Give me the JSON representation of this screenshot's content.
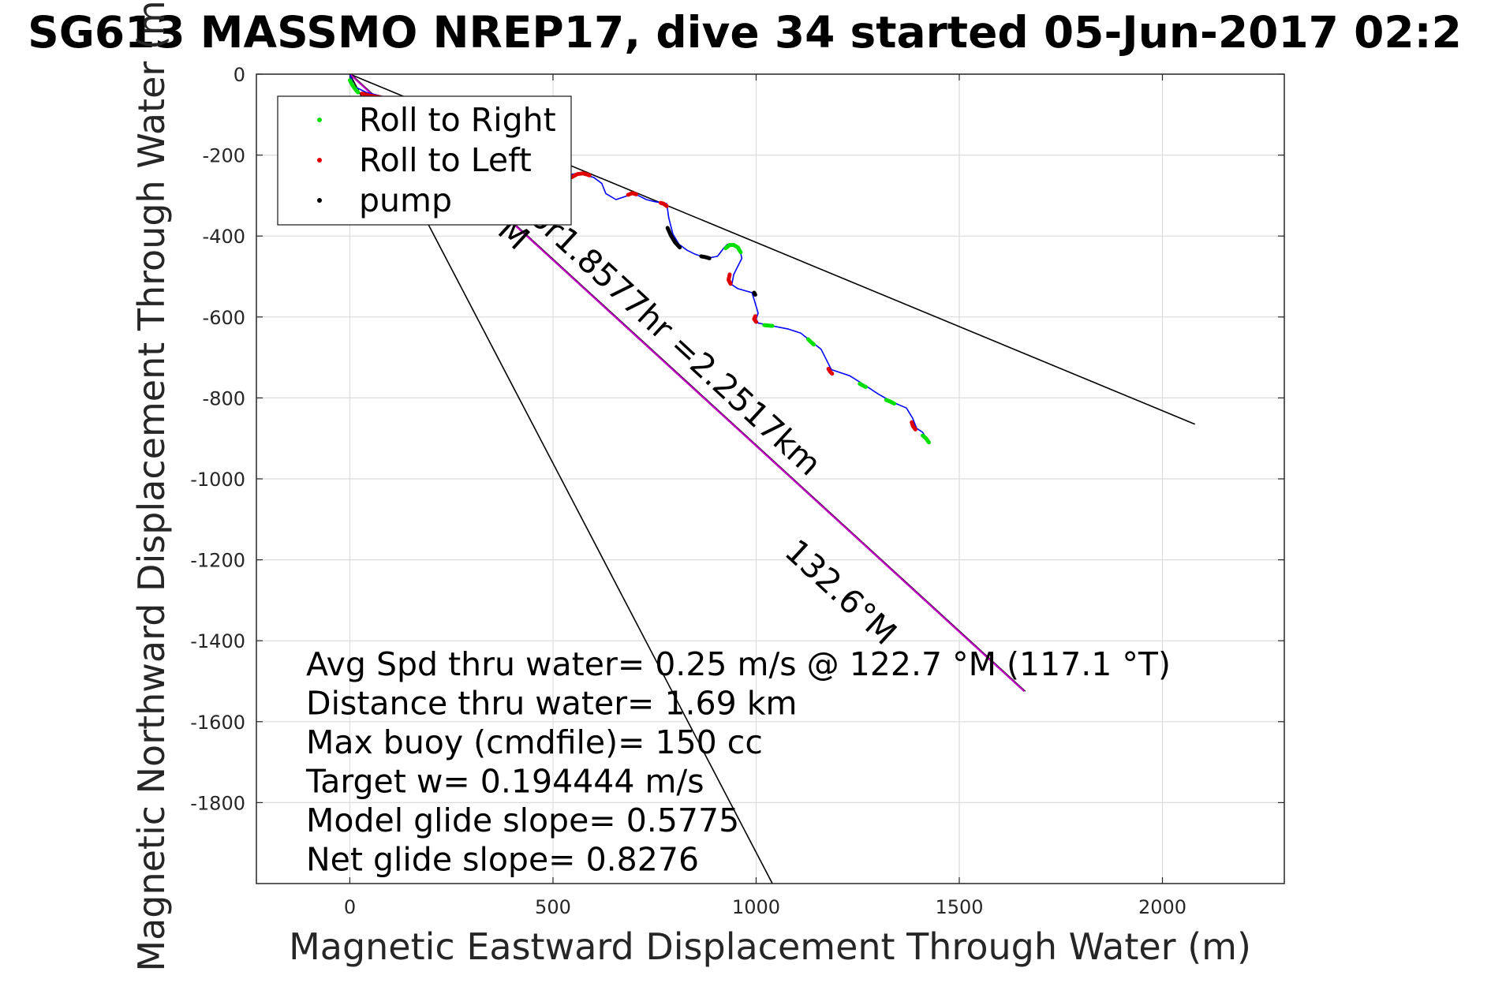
{
  "chart_data": {
    "type": "line",
    "title": "SG613 MASSMO NREP17, dive 34 started 05-Jun-2017 02:2",
    "xlabel": "Magnetic Eastward Displacement Through Water (m)",
    "ylabel": "Magnetic Northward Displacement Through Water (m)",
    "xlim": [
      -230,
      2300
    ],
    "ylim": [
      -2000,
      0
    ],
    "xticks": [
      0,
      500,
      1000,
      1500,
      2000
    ],
    "yticks": [
      0,
      -200,
      -400,
      -600,
      -800,
      -1000,
      -1200,
      -1400,
      -1600,
      -1800
    ],
    "grid": true,
    "legend_position": "top-left",
    "legend": [
      {
        "label": "Roll to Right",
        "color": "#00e000"
      },
      {
        "label": "Roll to Left",
        "color": "#e00000"
      },
      {
        "label": "pump",
        "color": "#000000"
      }
    ],
    "colors": {
      "track": "#0000ff",
      "roll_right": "#00e000",
      "roll_left": "#e00000",
      "pump": "#000000",
      "current": "#c000c0",
      "bounds": "#000000"
    },
    "series": [
      {
        "name": "track",
        "x": [
          0,
          10,
          40,
          80,
          150,
          250,
          330,
          400,
          460,
          510,
          560,
          600,
          620,
          630,
          655,
          700,
          730,
          750,
          780,
          785,
          795,
          810,
          830,
          850,
          880,
          905,
          920,
          930,
          945,
          960,
          965,
          945,
          940,
          955,
          990,
          1005,
          1000,
          1005,
          1030,
          1080,
          1110,
          1135,
          1160,
          1185,
          1230,
          1270,
          1300,
          1335,
          1370,
          1385,
          1395,
          1410,
          1425
        ],
        "y": [
          0,
          -30,
          -45,
          -55,
          -80,
          -120,
          -160,
          -200,
          -230,
          -255,
          -245,
          -255,
          -270,
          -295,
          -310,
          -295,
          -310,
          -315,
          -320,
          -355,
          -395,
          -420,
          -435,
          -445,
          -455,
          -450,
          -430,
          -420,
          -425,
          -435,
          -455,
          -495,
          -520,
          -530,
          -540,
          -590,
          -605,
          -615,
          -620,
          -630,
          -640,
          -660,
          -680,
          -730,
          -745,
          -770,
          -790,
          -810,
          -825,
          -850,
          -875,
          -885,
          -910
        ]
      },
      {
        "name": "current",
        "x": [
          0,
          1660
        ],
        "y": [
          0,
          -1525
        ]
      },
      {
        "name": "bound-1",
        "x": [
          0,
          2080
        ],
        "y": [
          0,
          -865
        ]
      },
      {
        "name": "bound-2",
        "x": [
          0,
          1040
        ],
        "y": [
          0,
          -2000
        ]
      }
    ],
    "markers": {
      "roll_right": [
        {
          "x": [
            0,
            5,
            12,
            20
          ],
          "y": [
            -15,
            -25,
            -35,
            -45
          ]
        },
        {
          "x": [
            925,
            935,
            945,
            955,
            962
          ],
          "y": [
            -430,
            -422,
            -422,
            -428,
            -440
          ]
        },
        {
          "x": [
            1020,
            1030,
            1040
          ],
          "y": [
            -620,
            -621,
            -622
          ]
        },
        {
          "x": [
            1128,
            1135,
            1142
          ],
          "y": [
            -655,
            -662,
            -668
          ]
        },
        {
          "x": [
            1255,
            1262,
            1270
          ],
          "y": [
            -765,
            -769,
            -773
          ]
        },
        {
          "x": [
            1320,
            1330,
            1340
          ],
          "y": [
            -805,
            -809,
            -814
          ]
        },
        {
          "x": [
            1410,
            1418,
            1425
          ],
          "y": [
            -893,
            -900,
            -910
          ]
        }
      ],
      "roll_left": [
        {
          "x": [
            30,
            45,
            60,
            75
          ],
          "y": [
            -48,
            -52,
            -55,
            -57
          ]
        },
        {
          "x": [
            545,
            560,
            575,
            590
          ],
          "y": [
            -255,
            -247,
            -245,
            -250
          ]
        },
        {
          "x": [
            685,
            695,
            705
          ],
          "y": [
            -298,
            -294,
            -297
          ]
        },
        {
          "x": [
            765,
            772,
            780
          ],
          "y": [
            -318,
            -320,
            -326
          ]
        },
        {
          "x": [
            935,
            932,
            937
          ],
          "y": [
            -495,
            -508,
            -518
          ]
        },
        {
          "x": [
            998,
            995,
            1000
          ],
          "y": [
            -598,
            -605,
            -612
          ]
        },
        {
          "x": [
            1178,
            1182,
            1187
          ],
          "y": [
            -728,
            -735,
            -740
          ]
        },
        {
          "x": [
            1383,
            1386,
            1392
          ],
          "y": [
            -860,
            -870,
            -878
          ]
        }
      ],
      "pump": [
        {
          "x": [
            782,
            790,
            800,
            812
          ],
          "y": [
            -380,
            -398,
            -415,
            -428
          ]
        },
        {
          "x": [
            865,
            875,
            885
          ],
          "y": [
            -450,
            -452,
            -455
          ]
        },
        {
          "x": [
            995,
            998
          ],
          "y": [
            -540,
            -545
          ]
        }
      ]
    },
    "annotations": [
      {
        "text": "132.6°M",
        "x": 1190,
        "y": -1300,
        "angle": 42.6,
        "partial": true
      },
      {
        "text": "M",
        "x": 385,
        "y": -415,
        "angle": 42.6,
        "partial": true
      },
      {
        "text": "m/s for1.8577hr =2.2517km",
        "x": 710,
        "y": -610,
        "angle": 42.6,
        "partial": true
      }
    ],
    "stats": [
      "Avg Spd thru water=  0.25 m/s @ 122.7 °M (117.1 °T)",
      "Distance thru water=  1.69 km",
      "Max buoy (cmdfile)= 150 cc",
      "Target w= 0.194444 m/s",
      "Model glide slope= 0.5775",
      "Net glide slope= 0.8276"
    ]
  }
}
